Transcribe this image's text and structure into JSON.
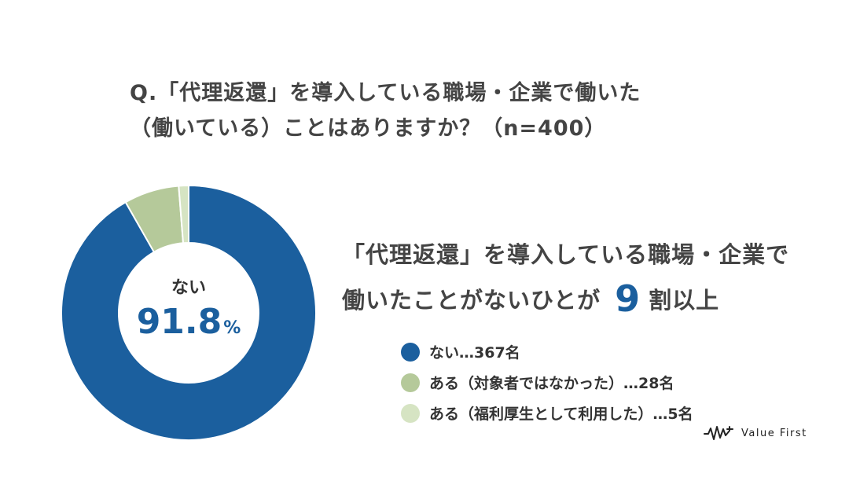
{
  "question": {
    "line1": "Q.「代理返還」を導入している職場・企業で働いた",
    "line2": "（働いている）ことはありますか？（n=400）"
  },
  "center": {
    "label": "ない",
    "percent": "91.8",
    "unit": "%"
  },
  "headline": {
    "line1": "「代理返還」を導入している職場・企業で",
    "line2_pre": "働いたことがないひとが",
    "big": "9",
    "line2_post": "割以上"
  },
  "legend": [
    {
      "text": "ない…367名",
      "color": "#1b5f9e"
    },
    {
      "text": "ある（対象者ではなかった）…28名",
      "color": "#b5c99a"
    },
    {
      "text": "ある（福利厚生として利用した）…5名",
      "color": "#d6e4c3"
    }
  ],
  "logo": {
    "text": "Value First"
  },
  "chart_data": {
    "type": "pie",
    "title": "Q.「代理返還」を導入している職場・企業で働いた（働いている）ことはありますか？（n=400）",
    "categories": [
      "ない",
      "ある（対象者ではなかった）",
      "ある（福利厚生として利用した）"
    ],
    "values": [
      367,
      28,
      5
    ],
    "colors": [
      "#1b5f9e",
      "#b5c99a",
      "#d6e4c3"
    ]
  }
}
